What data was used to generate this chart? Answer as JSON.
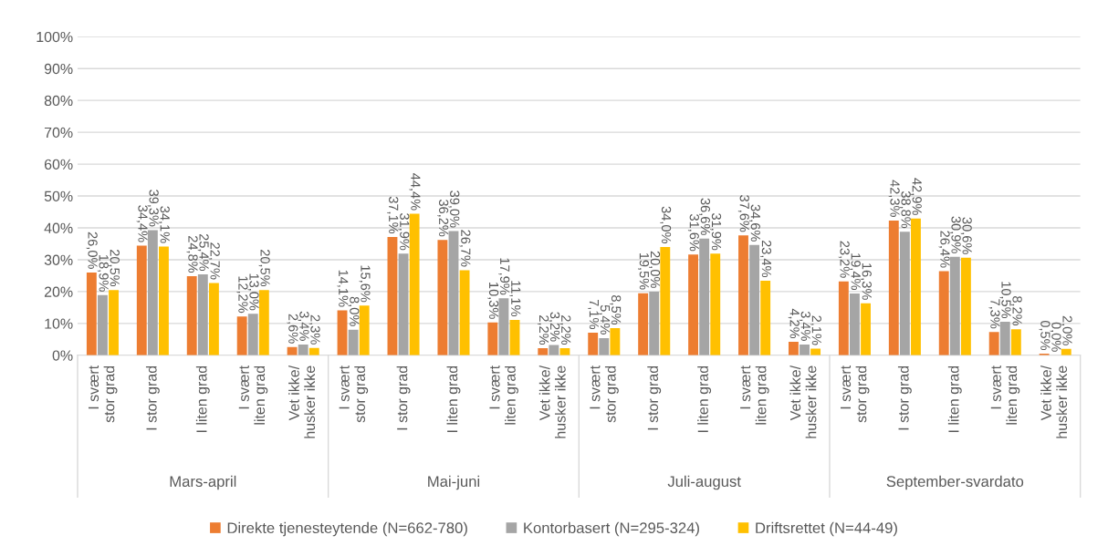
{
  "chart_data": {
    "type": "bar",
    "categories": [
      "I svært\nstor grad",
      "I stor grad",
      "I liten grad",
      "I svært\nliten grad",
      "Vet ikke/\nhusker ikke",
      "I svært\nstor grad",
      "I stor grad",
      "I liten grad",
      "I svært\nliten grad",
      "Vet ikke/\nhusker ikke",
      "I svært\nstor grad",
      "I stor grad",
      "I liten grad",
      "I svært\nliten grad",
      "Vet ikke/\nhusker ikke",
      "I svært\nstor grad",
      "I stor grad",
      "I liten grad",
      "I svært\nliten grad",
      "Vet ikke/\nhusker ikke"
    ],
    "annotations": [
      "Mars-april",
      "Mai-juni",
      "Juli-august",
      "September-svardato"
    ],
    "series": [
      {
        "name": "Direkte tjenesteytende (N=662-780)",
        "color": "#ed7d31",
        "values": [
          26.0,
          34.4,
          24.8,
          12.2,
          2.6,
          14.1,
          37.1,
          36.2,
          10.3,
          2.2,
          7.1,
          19.5,
          31.6,
          37.6,
          4.2,
          23.2,
          42.3,
          26.4,
          7.3,
          0.5
        ],
        "value_labels": [
          "26,0%",
          "34,4%",
          "24,8%",
          "12,2%",
          "2,6%",
          "14,1%",
          "37,1%",
          "36,2%",
          "10,3%",
          "2,2%",
          "7,1%",
          "19,5%",
          "31,6%",
          "37,6%",
          "4,2%",
          "23,2%",
          "42,3%",
          "26,4%",
          "7,3%",
          "0,5%"
        ]
      },
      {
        "name": "Kontorbasert (N=295-324)",
        "color": "#a5a5a5",
        "values": [
          18.9,
          39.3,
          25.4,
          13.0,
          3.4,
          8.0,
          31.9,
          39.0,
          17.9,
          3.2,
          5.4,
          20.0,
          36.6,
          34.6,
          3.4,
          19.4,
          38.8,
          30.9,
          10.5,
          0.0
        ],
        "value_labels": [
          "18,9%",
          "39,3%",
          "25,4%",
          "13,0%",
          "3,4%",
          "8,0%",
          "31,9%",
          "39,0%",
          "17,9%",
          "3,2%",
          "5,4%",
          "20,0%",
          "36,6%",
          "34,6%",
          "3,4%",
          "19,4%",
          "38,8%",
          "30,9%",
          "10,5%",
          "0,0%"
        ]
      },
      {
        "name": "Driftsrettet (N=44-49)",
        "color": "#ffc000",
        "values": [
          20.5,
          34.1,
          22.7,
          20.5,
          2.3,
          15.6,
          44.4,
          26.7,
          11.1,
          2.2,
          8.5,
          34.0,
          31.9,
          23.4,
          2.1,
          16.3,
          42.9,
          30.6,
          8.2,
          2.0
        ],
        "value_labels": [
          "20,5%",
          "34,1%",
          "22,7%",
          "20,5%",
          "2,3%",
          "15,6%",
          "44,4%",
          "26,7%",
          "11,1%",
          "2,2%",
          "8,5%",
          "34,0%",
          "31,9%",
          "23,4%",
          "2,1%",
          "16,3%",
          "42,9%",
          "30,6%",
          "8,2%",
          "2,0%"
        ]
      }
    ],
    "ylim": [
      0,
      100
    ],
    "yticks": [
      {
        "value": 0,
        "label": "0%"
      },
      {
        "value": 10,
        "label": "10%"
      },
      {
        "value": 20,
        "label": "20%"
      },
      {
        "value": 30,
        "label": "30%"
      },
      {
        "value": 40,
        "label": "40%"
      },
      {
        "value": 50,
        "label": "50%"
      },
      {
        "value": 60,
        "label": "60%"
      },
      {
        "value": 70,
        "label": "70%"
      },
      {
        "value": 80,
        "label": "80%"
      },
      {
        "value": 90,
        "label": "90%"
      },
      {
        "value": 100,
        "label": "100%"
      }
    ],
    "grid": "y",
    "legend": "bottom"
  }
}
